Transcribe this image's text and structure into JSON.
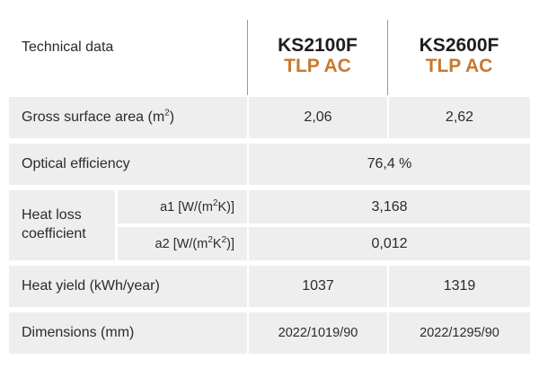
{
  "colors": {
    "accent": "#c8782f",
    "row_background": "#eeeeee",
    "divider": "#d9894a",
    "text": "#2b2b2b"
  },
  "header": {
    "label": "Technical data",
    "models": [
      {
        "name": "KS2100F",
        "sub": "TLP AC"
      },
      {
        "name": "KS2600F",
        "sub": "TLP AC"
      }
    ]
  },
  "rows": {
    "gross_surface_area": {
      "label": "Gross surface area (m",
      "label_sup": "2",
      "label_end": ")",
      "values": [
        "2,06",
        "2,62"
      ]
    },
    "optical_efficiency": {
      "label": "Optical efficiency",
      "value": "76,4 %"
    },
    "heat_loss": {
      "label_line1": "Heat loss",
      "label_line2": "coefficient",
      "a1": {
        "label": "a1 [W/(m",
        "sup1": "2",
        "label_end": "K)]",
        "value": "3,168"
      },
      "a2": {
        "label": "a2 [W/(m",
        "sup1": "2",
        "mid": "K",
        "sup2": "2",
        "label_end": ")]",
        "value": "0,012"
      }
    },
    "heat_yield": {
      "label": "Heat yield (kWh/year)",
      "values": [
        "1037",
        "1319"
      ]
    },
    "dimensions": {
      "label": "Dimensions (mm)",
      "values": [
        "2022/1019/90",
        "2022/1295/90"
      ]
    }
  }
}
